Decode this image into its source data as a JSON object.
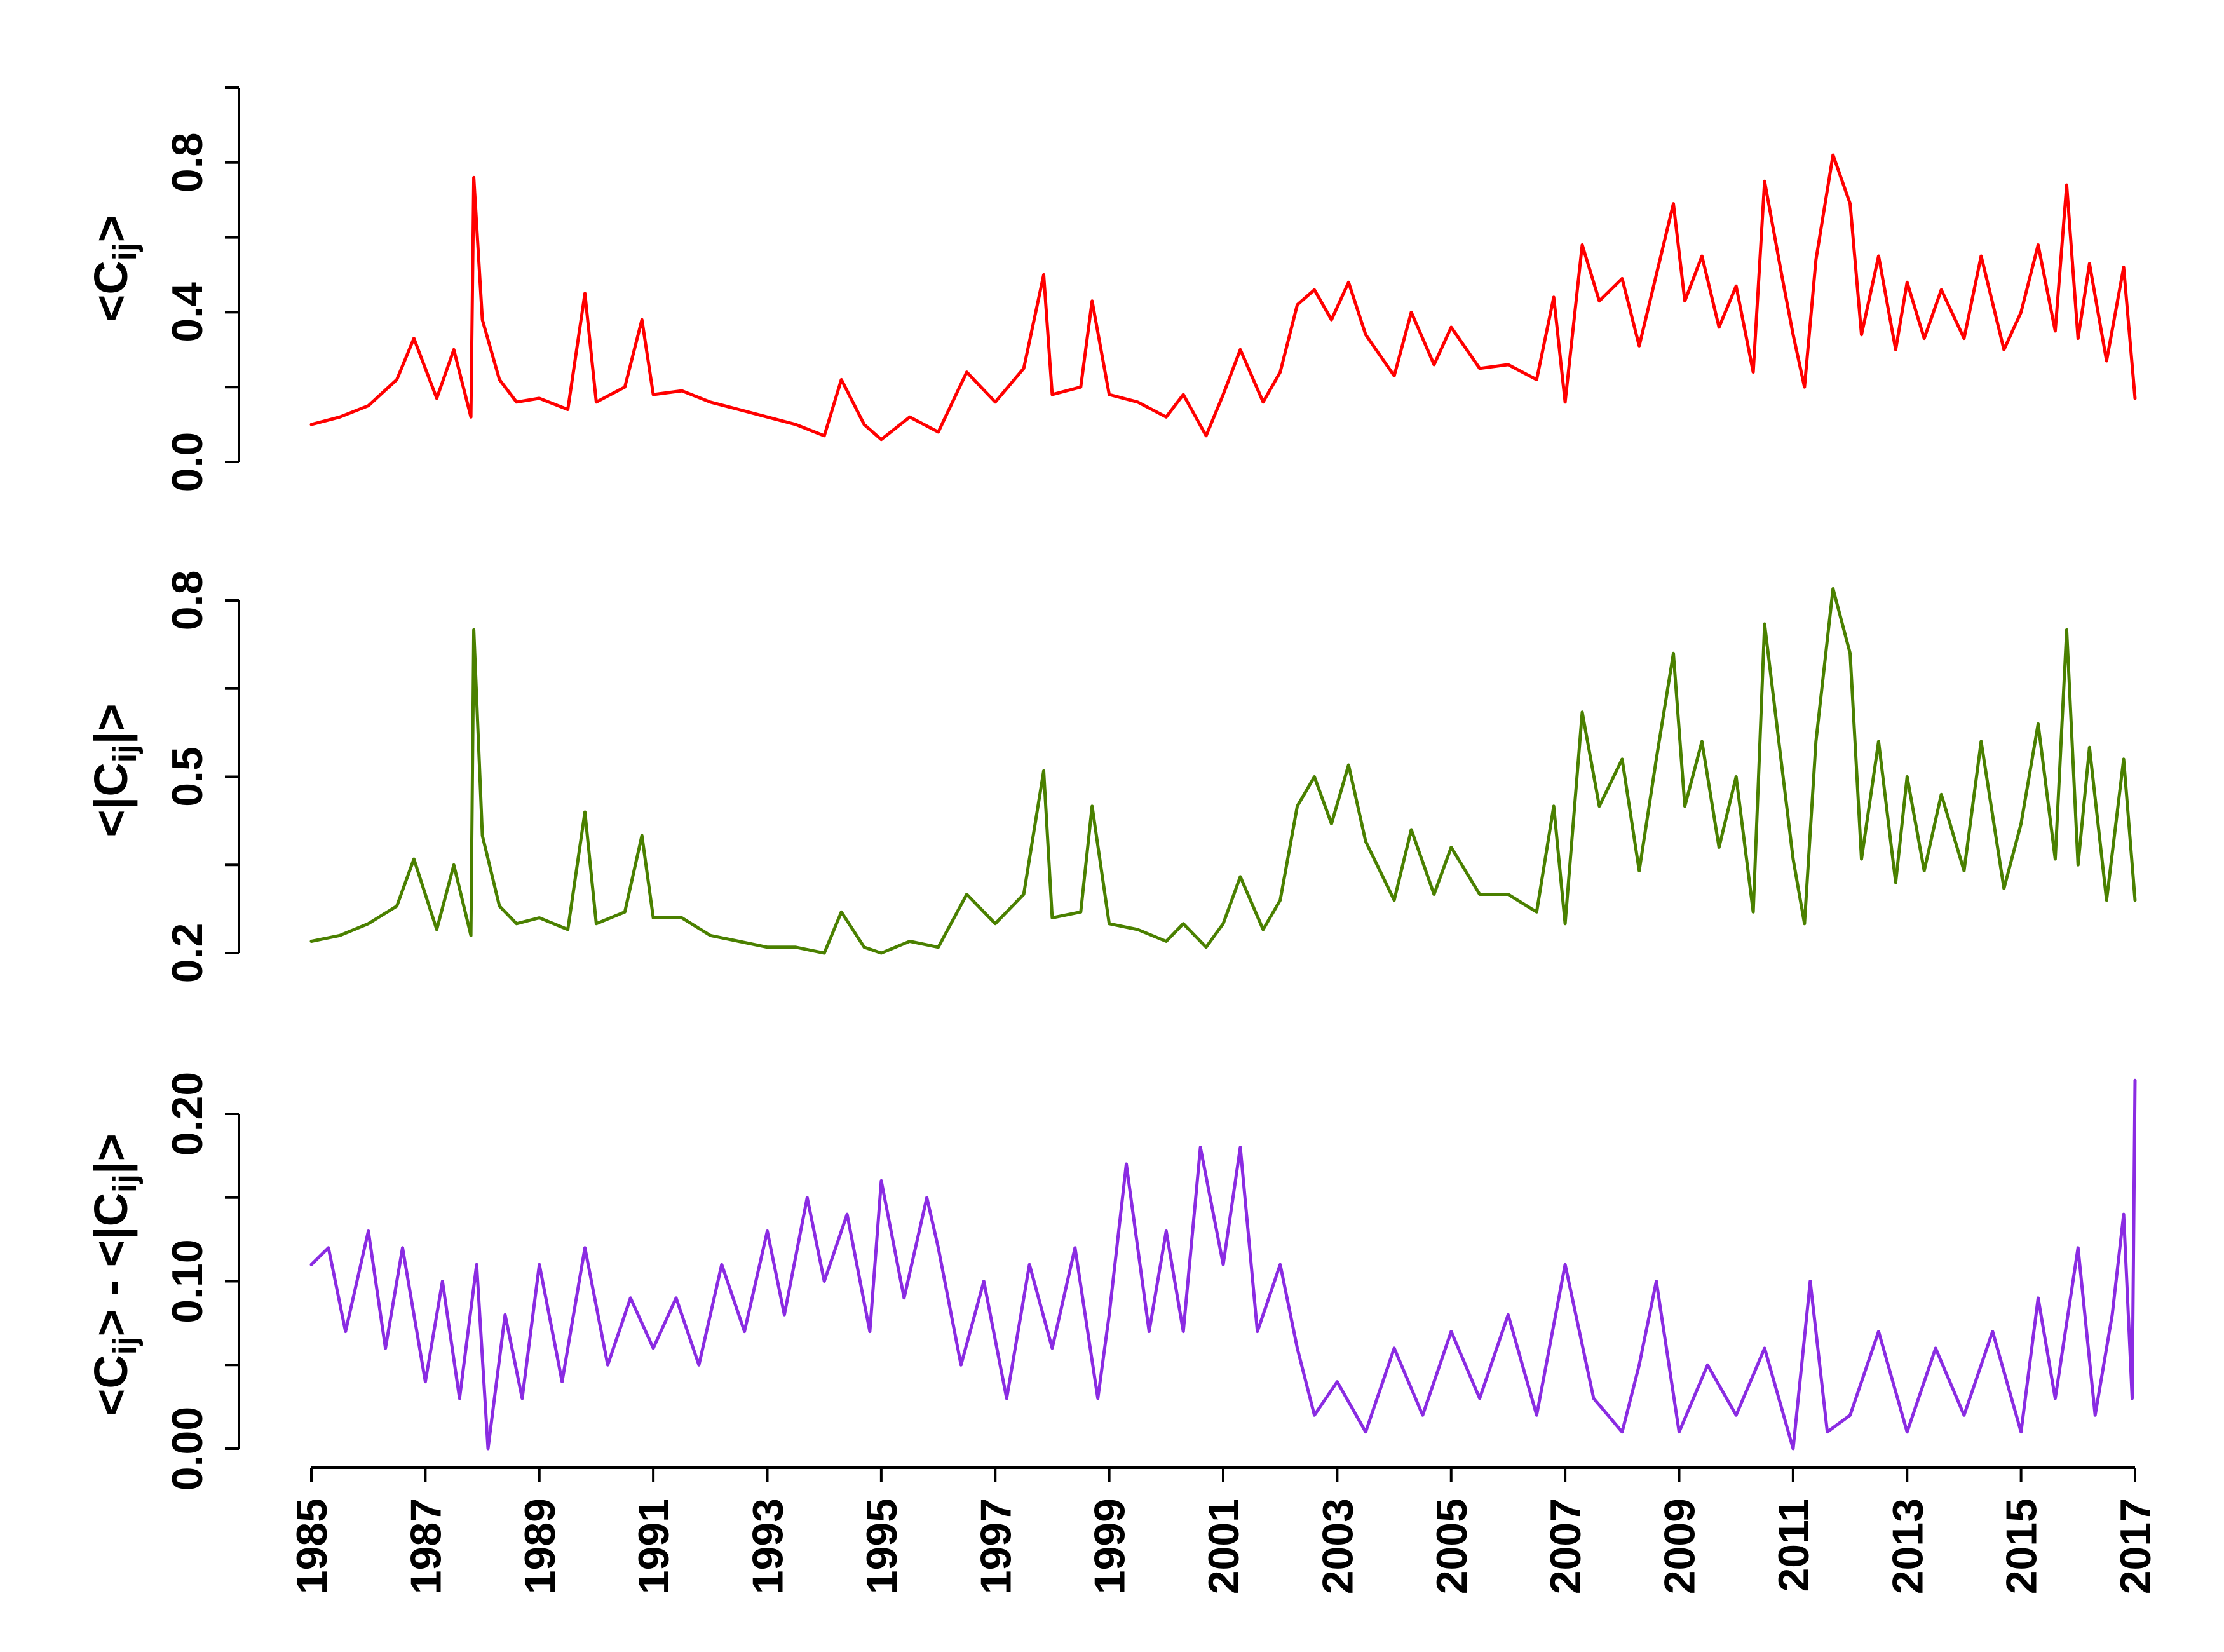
{
  "chart_data": {
    "type": "line",
    "layout": "three vertically stacked panels sharing a time x-axis (bottom panel only)",
    "x_axis": {
      "range": [
        1985,
        2017
      ],
      "ticks": [
        1985,
        1987,
        1989,
        1991,
        1993,
        1995,
        1997,
        1999,
        2001,
        2003,
        2005,
        2007,
        2009,
        2011,
        2013,
        2015,
        2017
      ],
      "tick_labels": [
        "1985",
        "1987",
        "1989",
        "1991",
        "1993",
        "1995",
        "1997",
        "1999",
        "2001",
        "2003",
        "2005",
        "2007",
        "2009",
        "2011",
        "2013",
        "2015",
        "2017"
      ],
      "tick_label_rotation": "vertical"
    },
    "grid": false,
    "legend": "none",
    "panels": [
      {
        "id": "mean-correlation",
        "ylabel": {
          "prefix": "<C",
          "sub": "ij",
          "suffix": ">"
        },
        "ylim": [
          0.0,
          1.0
        ],
        "y_major_ticks": [
          0.0,
          0.4,
          0.8
        ],
        "y_tick_labels": [
          "0.0",
          "0.4",
          "0.8"
        ],
        "y_minor_ticks": [
          0.2,
          0.6,
          1.0
        ],
        "series": [
          {
            "color": "#ff0000",
            "x": [
              1985.0,
              1985.5,
              1986.0,
              1986.5,
              1986.8,
              1987.2,
              1987.5,
              1987.8,
              1987.85,
              1988.0,
              1988.3,
              1988.6,
              1989.0,
              1989.5,
              1989.8,
              1990.0,
              1990.5,
              1990.8,
              1991.0,
              1991.5,
              1992.0,
              1992.5,
              1993.0,
              1993.5,
              1994.0,
              1994.3,
              1994.7,
              1995.0,
              1995.5,
              1996.0,
              1996.5,
              1997.0,
              1997.5,
              1997.85,
              1998.0,
              1998.5,
              1998.7,
              1999.0,
              1999.5,
              2000.0,
              2000.3,
              2000.7,
              2001.0,
              2001.3,
              2001.7,
              2002.0,
              2002.3,
              2002.6,
              2002.9,
              2003.2,
              2003.5,
              2004.0,
              2004.3,
              2004.7,
              2005.0,
              2005.5,
              2006.0,
              2006.5,
              2006.8,
              2007.0,
              2007.3,
              2007.6,
              2008.0,
              2008.3,
              2008.6,
              2008.9,
              2009.1,
              2009.4,
              2009.7,
              2010.0,
              2010.3,
              2010.5,
              2010.8,
              2011.0,
              2011.2,
              2011.4,
              2011.7,
              2012.0,
              2012.2,
              2012.5,
              2012.8,
              2013.0,
              2013.3,
              2013.6,
              2014.0,
              2014.3,
              2014.7,
              2015.0,
              2015.3,
              2015.6,
              2015.8,
              2016.0,
              2016.2,
              2016.5,
              2016.8,
              2017.0
            ],
            "y": [
              0.1,
              0.12,
              0.15,
              0.22,
              0.33,
              0.17,
              0.3,
              0.12,
              0.76,
              0.38,
              0.22,
              0.16,
              0.17,
              0.14,
              0.45,
              0.16,
              0.2,
              0.38,
              0.18,
              0.19,
              0.16,
              0.14,
              0.12,
              0.1,
              0.07,
              0.22,
              0.1,
              0.06,
              0.12,
              0.08,
              0.24,
              0.16,
              0.25,
              0.5,
              0.18,
              0.2,
              0.43,
              0.18,
              0.16,
              0.12,
              0.18,
              0.07,
              0.18,
              0.3,
              0.16,
              0.24,
              0.42,
              0.46,
              0.38,
              0.48,
              0.34,
              0.23,
              0.4,
              0.26,
              0.36,
              0.25,
              0.26,
              0.22,
              0.44,
              0.16,
              0.58,
              0.43,
              0.49,
              0.31,
              0.5,
              0.69,
              0.43,
              0.55,
              0.36,
              0.47,
              0.24,
              0.75,
              0.5,
              0.34,
              0.2,
              0.54,
              0.82,
              0.69,
              0.34,
              0.55,
              0.3,
              0.48,
              0.33,
              0.46,
              0.33,
              0.55,
              0.3,
              0.4,
              0.58,
              0.35,
              0.74,
              0.33,
              0.53,
              0.27,
              0.52,
              0.17
            ]
          }
        ]
      },
      {
        "id": "mean-absolute-correlation",
        "ylabel": {
          "prefix": "<|C",
          "sub": "ij",
          "suffix": "|>"
        },
        "ylim": [
          0.2,
          0.8
        ],
        "y_major_ticks": [
          0.2,
          0.5,
          0.8
        ],
        "y_tick_labels": [
          "0.2",
          "0.5",
          "0.8"
        ],
        "y_minor_ticks": [
          0.35,
          0.65
        ],
        "series": [
          {
            "color": "#4a8000",
            "x": [
              1985.0,
              1985.5,
              1986.0,
              1986.5,
              1986.8,
              1987.2,
              1987.5,
              1987.8,
              1987.85,
              1988.0,
              1988.3,
              1988.6,
              1989.0,
              1989.5,
              1989.8,
              1990.0,
              1990.5,
              1990.8,
              1991.0,
              1991.5,
              1992.0,
              1992.5,
              1993.0,
              1993.5,
              1994.0,
              1994.3,
              1994.7,
              1995.0,
              1995.5,
              1996.0,
              1996.5,
              1997.0,
              1997.5,
              1997.85,
              1998.0,
              1998.5,
              1998.7,
              1999.0,
              1999.5,
              2000.0,
              2000.3,
              2000.7,
              2001.0,
              2001.3,
              2001.7,
              2002.0,
              2002.3,
              2002.6,
              2002.9,
              2003.2,
              2003.5,
              2004.0,
              2004.3,
              2004.7,
              2005.0,
              2005.5,
              2006.0,
              2006.5,
              2006.8,
              2007.0,
              2007.3,
              2007.6,
              2008.0,
              2008.3,
              2008.6,
              2008.9,
              2009.1,
              2009.4,
              2009.7,
              2010.0,
              2010.3,
              2010.5,
              2010.8,
              2011.0,
              2011.2,
              2011.4,
              2011.7,
              2012.0,
              2012.2,
              2012.5,
              2012.8,
              2013.0,
              2013.3,
              2013.6,
              2014.0,
              2014.3,
              2014.7,
              2015.0,
              2015.3,
              2015.6,
              2015.8,
              2016.0,
              2016.2,
              2016.5,
              2016.8,
              2017.0
            ],
            "y": [
              0.22,
              0.23,
              0.25,
              0.28,
              0.36,
              0.24,
              0.35,
              0.23,
              0.75,
              0.4,
              0.28,
              0.25,
              0.26,
              0.24,
              0.44,
              0.25,
              0.27,
              0.4,
              0.26,
              0.26,
              0.23,
              0.22,
              0.21,
              0.21,
              0.2,
              0.27,
              0.21,
              0.2,
              0.22,
              0.21,
              0.3,
              0.25,
              0.3,
              0.51,
              0.26,
              0.27,
              0.45,
              0.25,
              0.24,
              0.22,
              0.25,
              0.21,
              0.25,
              0.33,
              0.24,
              0.29,
              0.45,
              0.5,
              0.42,
              0.52,
              0.39,
              0.29,
              0.41,
              0.3,
              0.38,
              0.3,
              0.3,
              0.27,
              0.45,
              0.25,
              0.61,
              0.45,
              0.53,
              0.34,
              0.53,
              0.71,
              0.45,
              0.56,
              0.38,
              0.5,
              0.27,
              0.76,
              0.52,
              0.36,
              0.25,
              0.56,
              0.82,
              0.71,
              0.36,
              0.56,
              0.32,
              0.5,
              0.34,
              0.47,
              0.34,
              0.56,
              0.31,
              0.42,
              0.59,
              0.36,
              0.75,
              0.35,
              0.55,
              0.29,
              0.53,
              0.29
            ]
          }
        ]
      },
      {
        "id": "difference",
        "ylabel": {
          "prefix": "<C",
          "sub": "ij",
          "suffix": "> - <|C",
          "sub2": "ij",
          "suffix2": "|>"
        },
        "ylim": [
          0.0,
          0.2
        ],
        "y_major_ticks": [
          0.0,
          0.1,
          0.2
        ],
        "y_tick_labels": [
          "0.00",
          "0.10",
          "0.20"
        ],
        "y_minor_ticks": [
          0.05,
          0.15
        ],
        "series": [
          {
            "color": "#8a2be2",
            "x": [
              1985.0,
              1985.3,
              1985.6,
              1986.0,
              1986.3,
              1986.6,
              1987.0,
              1987.3,
              1987.6,
              1987.9,
              1988.1,
              1988.4,
              1988.7,
              1989.0,
              1989.4,
              1989.8,
              1990.2,
              1990.6,
              1991.0,
              1991.4,
              1991.8,
              1992.2,
              1992.6,
              1993.0,
              1993.3,
              1993.7,
              1994.0,
              1994.4,
              1994.8,
              1995.0,
              1995.4,
              1995.8,
              1996.0,
              1996.4,
              1996.8,
              1997.2,
              1997.6,
              1998.0,
              1998.4,
              1998.8,
              1999.0,
              1999.3,
              1999.7,
              2000.0,
              2000.3,
              2000.6,
              2001.0,
              2001.3,
              2001.6,
              2002.0,
              2002.3,
              2002.6,
              2003.0,
              2003.5,
              2004.0,
              2004.5,
              2005.0,
              2005.5,
              2006.0,
              2006.5,
              2007.0,
              2007.5,
              2008.0,
              2008.3,
              2008.6,
              2009.0,
              2009.5,
              2010.0,
              2010.5,
              2011.0,
              2011.3,
              2011.6,
              2012.0,
              2012.5,
              2013.0,
              2013.5,
              2014.0,
              2014.5,
              2015.0,
              2015.3,
              2015.6,
              2016.0,
              2016.3,
              2016.6,
              2016.8,
              2016.95,
              2017.0
            ],
            "y": [
              0.11,
              0.12,
              0.07,
              0.13,
              0.06,
              0.12,
              0.04,
              0.1,
              0.03,
              0.11,
              0.0,
              0.08,
              0.03,
              0.11,
              0.04,
              0.12,
              0.05,
              0.09,
              0.06,
              0.09,
              0.05,
              0.11,
              0.07,
              0.13,
              0.08,
              0.15,
              0.1,
              0.14,
              0.07,
              0.16,
              0.09,
              0.15,
              0.12,
              0.05,
              0.1,
              0.03,
              0.11,
              0.06,
              0.12,
              0.03,
              0.08,
              0.17,
              0.07,
              0.13,
              0.07,
              0.18,
              0.11,
              0.18,
              0.07,
              0.11,
              0.06,
              0.02,
              0.04,
              0.01,
              0.06,
              0.02,
              0.07,
              0.03,
              0.08,
              0.02,
              0.11,
              0.03,
              0.01,
              0.05,
              0.1,
              0.01,
              0.05,
              0.02,
              0.06,
              0.0,
              0.1,
              0.01,
              0.02,
              0.07,
              0.01,
              0.06,
              0.02,
              0.07,
              0.01,
              0.09,
              0.03,
              0.12,
              0.02,
              0.08,
              0.14,
              0.03,
              0.22
            ]
          }
        ]
      }
    ]
  }
}
